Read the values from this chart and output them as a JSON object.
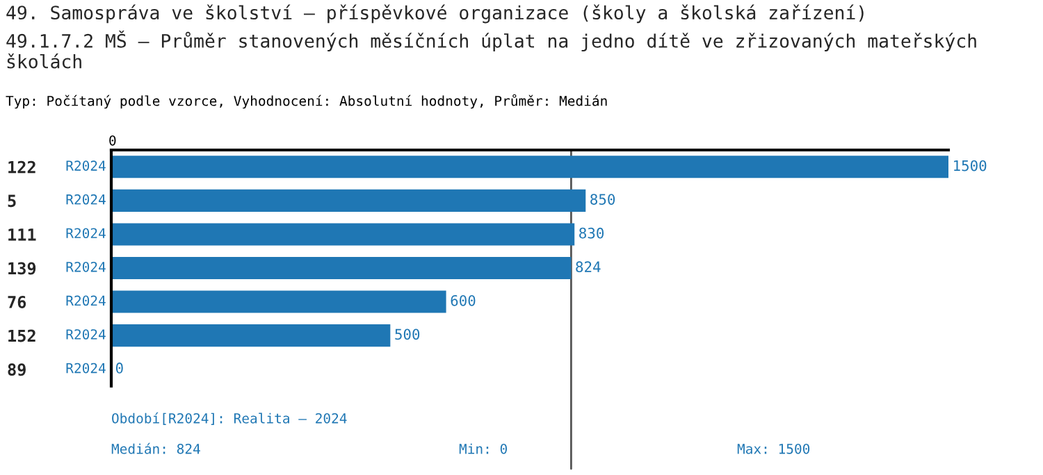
{
  "chart_data": {
    "type": "bar",
    "orientation": "horizontal",
    "title": "49. Samospráva ve školství – příspěvkové organizace (školy a školská zařízení)",
    "subtitle": "49.1.7.2 MŠ – Průměr stanovených měsíčních úplat na jedno dítě ve zřizovaných mateřských školách",
    "categories": [
      "122",
      "5",
      "111",
      "139",
      "76",
      "152",
      "89"
    ],
    "series": [
      {
        "name": "R2024",
        "color": "#1f77b4",
        "values": [
          1500,
          850,
          830,
          824,
          600,
          500,
          0
        ]
      }
    ],
    "data_labels": true,
    "legend": false,
    "grid": false,
    "ref_lines": [
      {
        "axis": "x",
        "value": 824,
        "color": "#555555"
      }
    ],
    "annotations": [
      "Typ: Počítaný podle vzorce, Vyhodnocení: Absolutní hodnoty, Průměr: Medián",
      "Období[R2024]: Realita – 2024",
      "Medián: 824",
      "Min: 0",
      "Max: 1500",
      "0"
    ]
  }
}
